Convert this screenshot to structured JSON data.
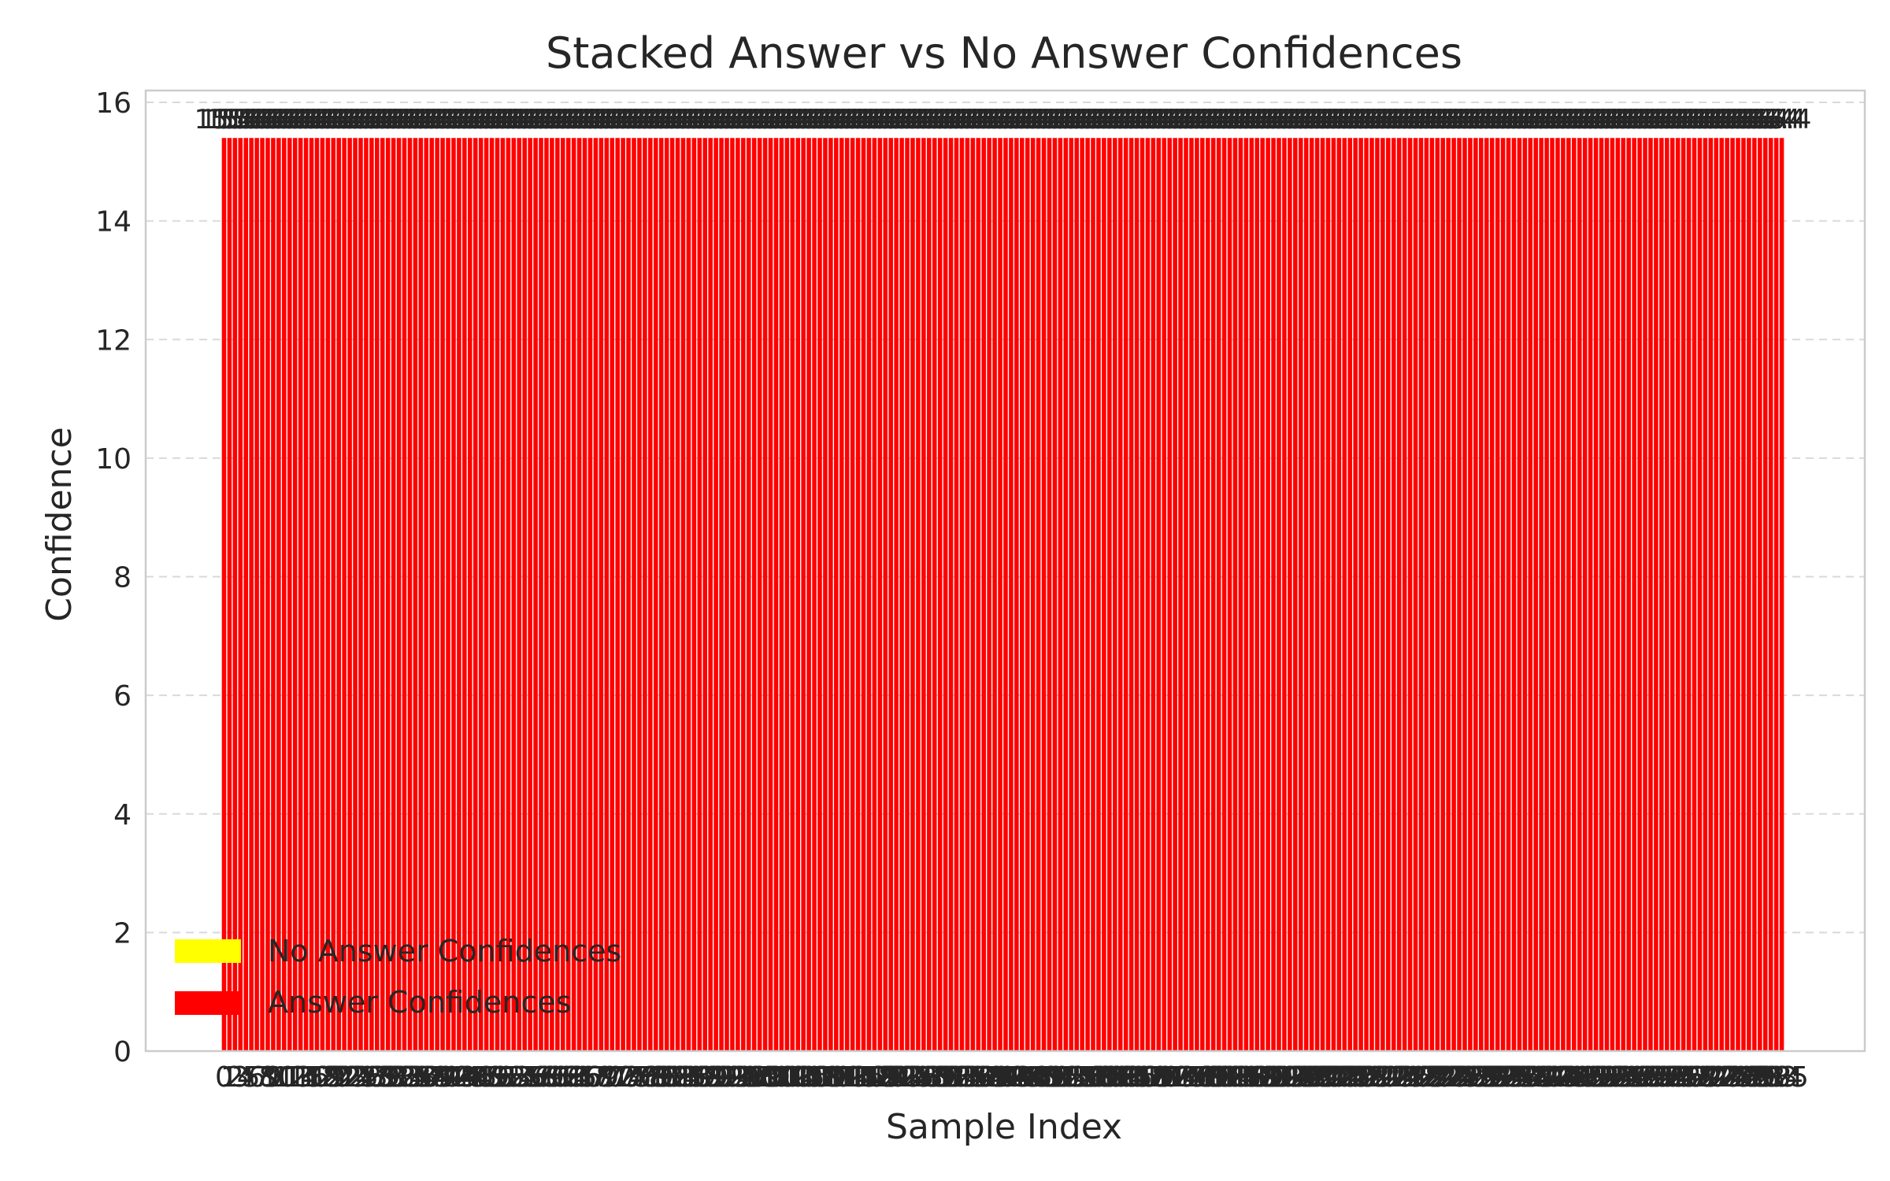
{
  "chart_data": {
    "type": "bar",
    "stacked": true,
    "title": "Stacked Answer vs No Answer Confidences",
    "xlabel": "Sample Index",
    "ylabel": "Confidence",
    "ylim": [
      0,
      16.2
    ],
    "yticks": [
      0,
      2,
      4,
      6,
      8,
      10,
      12,
      14,
      16
    ],
    "categories_count": 286,
    "categories_label": "sample indices 0 through 285",
    "x_first_tick": "0",
    "x_last_tick": "285",
    "series": [
      {
        "name": "No Answer Confidences",
        "color": "#ffff00",
        "values_constant": 0.0
      },
      {
        "name": "Answer Confidences",
        "color": "#ff0000",
        "values_constant": 15.4
      }
    ],
    "data_label_value": "15.4",
    "grid": true,
    "legend_position": "lower-left",
    "colors": {
      "answer": "#ff0000",
      "no_answer": "#ffff00",
      "text": "#262626",
      "grid": "#d9d9d9",
      "frame": "#cccccc"
    }
  }
}
